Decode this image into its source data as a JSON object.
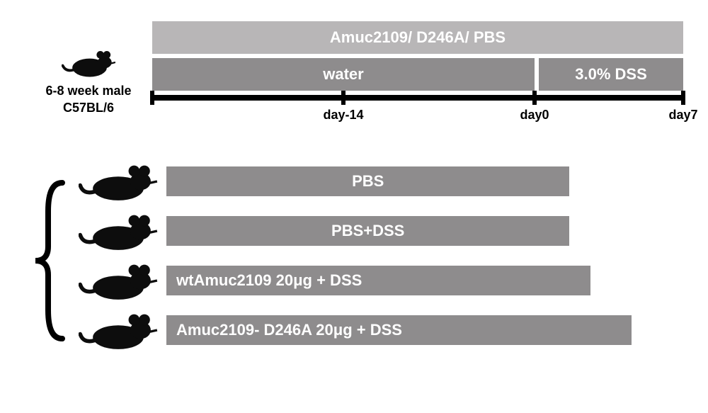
{
  "colors": {
    "light_gray": "#b8b6b7",
    "dark_gray": "#8e8c8d",
    "black": "#000000",
    "white": "#ffffff",
    "mouse_fill": "#0d0d0d"
  },
  "sizes": {
    "top_bar_fontsize": 22,
    "group_bar_fontsize": 22,
    "axis_label_fontsize": 18,
    "mouse_label_fontsize": 18
  },
  "mouse_label": {
    "line1": "6-8 week male",
    "line2": "C57BL/6"
  },
  "timeline": {
    "treatment_bar": "Amuc2109/ D246A/ PBS",
    "water_bar": "water",
    "dss_bar": "3.0% DSS",
    "water_fraction": 0.72,
    "dss_fraction": 0.28,
    "ticks": [
      {
        "pos_pct": 0,
        "label": ""
      },
      {
        "pos_pct": 36,
        "label": "day-14"
      },
      {
        "pos_pct": 72,
        "label": "day0"
      },
      {
        "pos_pct": 100,
        "label": "day7"
      }
    ]
  },
  "groups": [
    {
      "label": "PBS",
      "align": "center",
      "width_pct": 78
    },
    {
      "label": "PBS+DSS",
      "align": "center",
      "width_pct": 78
    },
    {
      "label": "wtAmuc2109 20μg  + DSS",
      "align": "left",
      "width_pct": 82
    },
    {
      "label": "Amuc2109- D246A  20μg  + DSS",
      "align": "left",
      "width_pct": 90
    }
  ]
}
